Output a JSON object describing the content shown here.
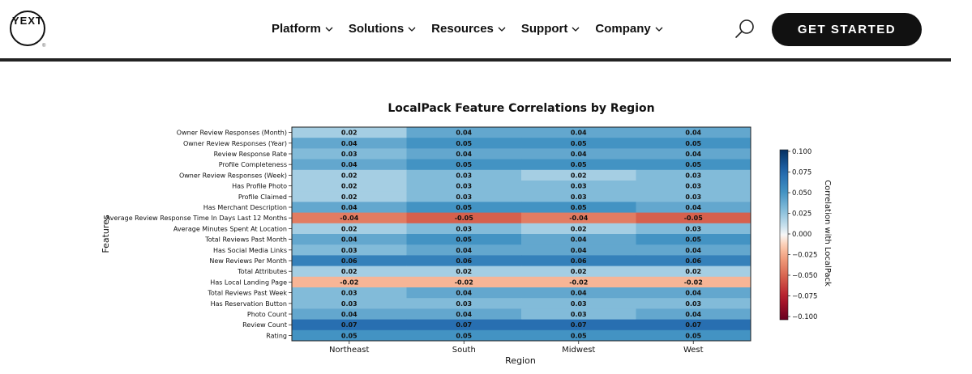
{
  "header": {
    "logo_text": "YEXT",
    "logo_mark": "®",
    "nav": [
      "Platform",
      "Solutions",
      "Resources",
      "Support",
      "Company"
    ],
    "cta_label": "GET STARTED",
    "search_icon": "search-icon"
  },
  "colors": {
    "text": "#111111",
    "cta_bg": "#111111",
    "cta_text": "#ffffff",
    "grid_border": "#222222"
  },
  "chart_data": {
    "type": "heatmap",
    "title": "LocalPack Feature Correlations by Region",
    "xlabel": "Region",
    "ylabel": "Features",
    "colorbar_label": "Correlation with LocalPack",
    "colorbar_ticks": [
      "0.100",
      "0.075",
      "0.050",
      "0.025",
      "0.000",
      "−0.025",
      "−0.050",
      "−0.075",
      "−0.100"
    ],
    "vmin": -0.1,
    "vmax": 0.1,
    "columns": [
      "Northeast",
      "South",
      "Midwest",
      "West"
    ],
    "rows": [
      "Owner Review Responses (Month)",
      "Owner Review Responses (Year)",
      "Review Response Rate",
      "Profile Completeness",
      "Owner Review Responses (Week)",
      "Has Profile Photo",
      "Profile Claimed",
      "Has Merchant Description",
      "Average Review Response Time In Days Last 12 Months",
      "Average Minutes Spent At Location",
      "Total Reviews Past Month",
      "Has Social Media Links",
      "New Reviews Per Month",
      "Total Attributes",
      "Has Local Landing Page",
      "Total Reviews Past Week",
      "Has Reservation Button",
      "Photo Count",
      "Review Count",
      "Rating"
    ],
    "values": [
      [
        0.02,
        0.04,
        0.04,
        0.04
      ],
      [
        0.04,
        0.05,
        0.05,
        0.05
      ],
      [
        0.03,
        0.04,
        0.04,
        0.04
      ],
      [
        0.04,
        0.05,
        0.05,
        0.05
      ],
      [
        0.02,
        0.03,
        0.02,
        0.03
      ],
      [
        0.02,
        0.03,
        0.03,
        0.03
      ],
      [
        0.02,
        0.03,
        0.03,
        0.03
      ],
      [
        0.04,
        0.05,
        0.05,
        0.04
      ],
      [
        -0.04,
        -0.05,
        -0.04,
        -0.05
      ],
      [
        0.02,
        0.03,
        0.02,
        0.03
      ],
      [
        0.04,
        0.05,
        0.04,
        0.05
      ],
      [
        0.03,
        0.04,
        0.04,
        0.04
      ],
      [
        0.06,
        0.06,
        0.06,
        0.06
      ],
      [
        0.02,
        0.02,
        0.02,
        0.02
      ],
      [
        -0.02,
        -0.02,
        -0.02,
        -0.02
      ],
      [
        0.03,
        0.04,
        0.04,
        0.04
      ],
      [
        0.03,
        0.03,
        0.03,
        0.03
      ],
      [
        0.04,
        0.04,
        0.03,
        0.04
      ],
      [
        0.07,
        0.07,
        0.07,
        0.07
      ],
      [
        0.05,
        0.05,
        0.05,
        0.05
      ]
    ]
  }
}
